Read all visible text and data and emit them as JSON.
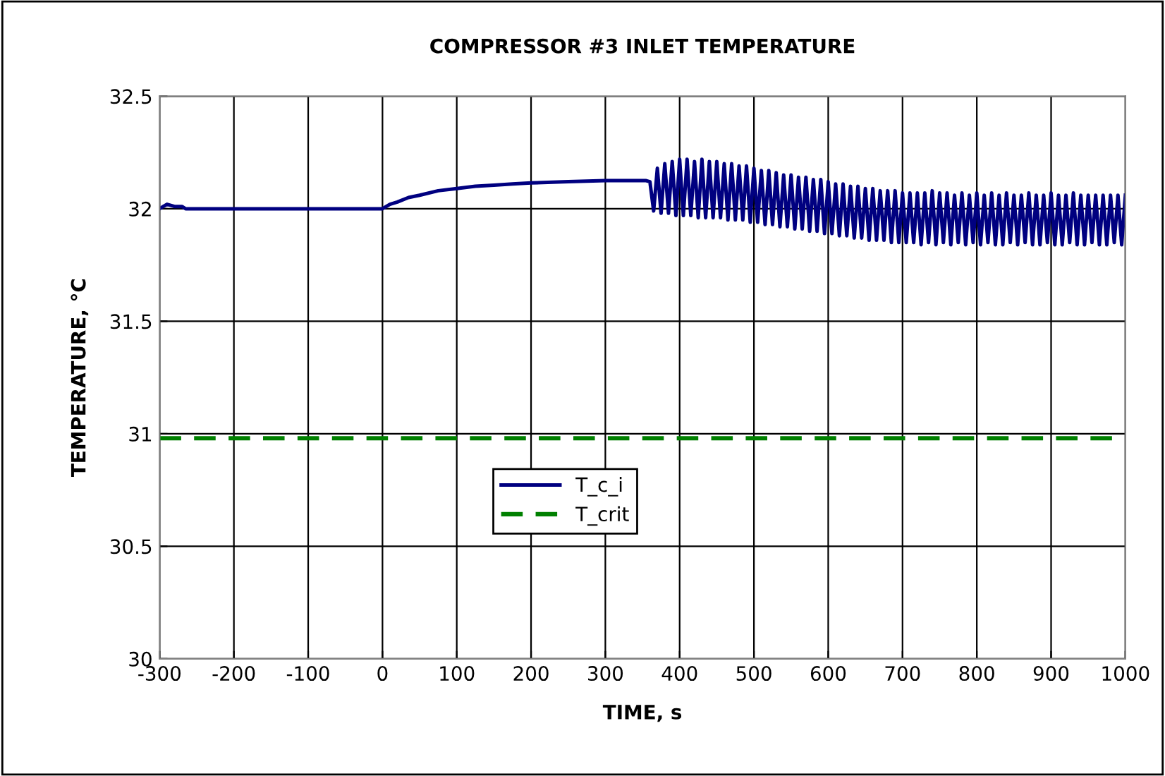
{
  "chart_data": {
    "type": "line",
    "title": "COMPRESSOR #3 INLET TEMPERATURE",
    "xlabel": "TIME, s",
    "ylabel": "TEMPERATURE, °C",
    "series": [
      {
        "name": "T_c_i",
        "color": "#000080",
        "x": [
          -300,
          -295,
          -290,
          -280,
          -270,
          -265,
          -200,
          -100,
          0,
          10,
          20,
          35,
          50,
          75,
          100,
          125,
          150,
          175,
          200,
          250,
          300,
          355,
          360,
          365,
          370,
          375,
          380,
          385,
          390,
          395,
          400,
          405,
          410,
          415,
          420,
          425,
          430,
          435,
          440,
          445,
          450,
          455,
          460,
          465,
          470,
          475,
          480,
          485,
          490,
          495,
          500,
          505,
          510,
          515,
          520,
          525,
          530,
          535,
          540,
          545,
          550,
          555,
          560,
          565,
          570,
          575,
          580,
          585,
          590,
          595,
          600,
          605,
          610,
          615,
          620,
          625,
          630,
          635,
          640,
          645,
          650,
          655,
          660,
          665,
          670,
          675,
          680,
          685,
          690,
          695,
          700,
          705,
          710,
          715,
          720,
          725,
          730,
          735,
          740,
          745,
          750,
          755,
          760,
          765,
          770,
          775,
          780,
          785,
          790,
          795,
          800,
          805,
          810,
          815,
          820,
          825,
          830,
          835,
          840,
          845,
          850,
          855,
          860,
          865,
          870,
          875,
          880,
          885,
          890,
          895,
          900,
          905,
          910,
          915,
          920,
          925,
          930,
          935,
          940,
          945,
          950,
          955,
          960,
          965,
          970,
          975,
          980,
          985,
          990,
          995,
          1000
        ],
        "values": [
          32.0,
          32.01,
          32.02,
          32.01,
          32.01,
          32.0,
          32.0,
          32.0,
          32.0,
          32.02,
          32.03,
          32.05,
          32.06,
          32.08,
          32.09,
          32.1,
          32.105,
          32.11,
          32.115,
          32.12,
          32.125,
          32.125,
          32.12,
          31.99,
          32.18,
          31.98,
          32.2,
          31.98,
          32.21,
          31.97,
          32.22,
          31.97,
          32.22,
          31.97,
          32.21,
          31.96,
          32.22,
          31.96,
          32.21,
          31.96,
          32.21,
          31.96,
          32.2,
          31.95,
          32.2,
          31.95,
          32.19,
          31.95,
          32.19,
          31.94,
          32.18,
          31.94,
          32.17,
          31.93,
          32.17,
          31.93,
          32.16,
          31.92,
          32.15,
          31.92,
          32.15,
          31.91,
          32.14,
          31.91,
          32.14,
          31.9,
          32.13,
          31.9,
          32.13,
          31.89,
          32.12,
          31.89,
          32.11,
          31.88,
          32.11,
          31.88,
          32.1,
          31.87,
          32.1,
          31.87,
          32.09,
          31.86,
          32.09,
          31.86,
          32.08,
          31.86,
          32.08,
          31.85,
          32.08,
          31.85,
          32.07,
          31.85,
          32.07,
          31.85,
          32.07,
          31.84,
          32.07,
          31.85,
          32.08,
          31.84,
          32.07,
          31.85,
          32.07,
          31.84,
          32.06,
          31.85,
          32.07,
          31.84,
          32.06,
          31.85,
          32.07,
          31.84,
          32.06,
          31.85,
          32.07,
          31.84,
          32.06,
          31.84,
          32.07,
          31.85,
          32.06,
          31.84,
          32.06,
          31.85,
          32.07,
          31.84,
          32.06,
          31.84,
          32.06,
          31.85,
          32.07,
          31.84,
          32.06,
          31.84,
          32.06,
          31.85,
          32.07,
          31.84,
          32.06,
          31.84,
          32.06,
          31.85,
          32.06,
          31.84,
          32.06,
          31.84,
          32.06,
          31.85,
          32.06,
          31.84,
          32.06
        ]
      }
    ],
    "ref_lines": [
      {
        "axis": "y",
        "value": 30.98,
        "label": "T_crit",
        "color": "#008000",
        "line_style": "dashed"
      }
    ],
    "xlim": [
      -300,
      1000
    ],
    "xticks": [
      -300,
      -200,
      -100,
      0,
      100,
      200,
      300,
      400,
      500,
      600,
      700,
      800,
      900,
      1000
    ],
    "ylim": [
      30,
      32.5
    ],
    "yticks": [
      30,
      30.5,
      31,
      31.5,
      32,
      32.5
    ],
    "grid": true,
    "legend": "center",
    "line_style": "solid",
    "marker": "none"
  }
}
